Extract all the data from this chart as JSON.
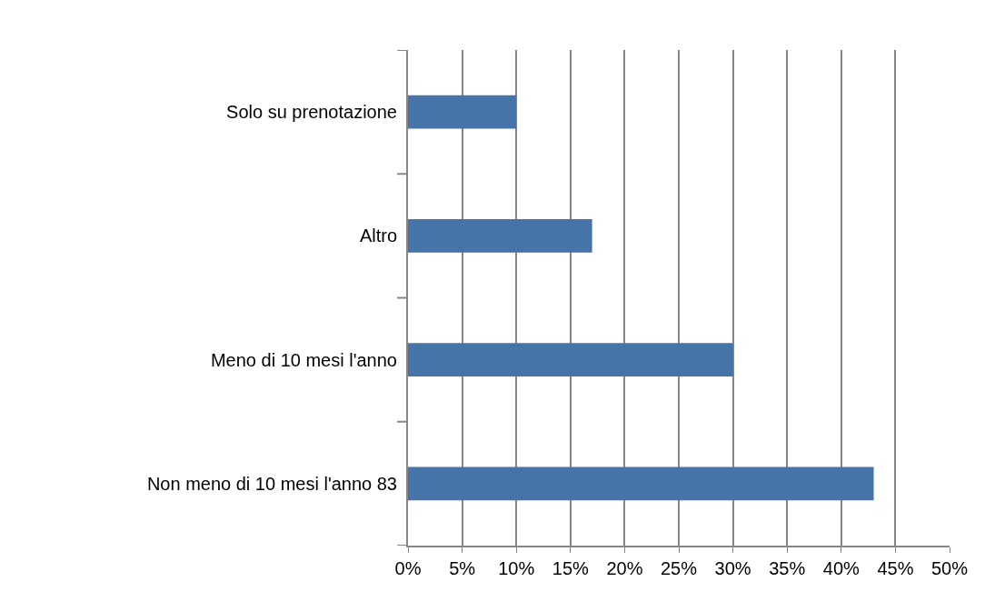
{
  "chart_data": {
    "type": "bar",
    "orientation": "horizontal",
    "categories": [
      "Solo su prenotazione",
      "Altro",
      "Meno di 10 mesi l'anno",
      "Non meno di 10 mesi l'anno 83"
    ],
    "values": [
      10,
      17,
      30,
      43
    ],
    "color": "#4674a9",
    "xlim": [
      0,
      50
    ],
    "xticks": [
      {
        "value": 0,
        "label": "0%"
      },
      {
        "value": 5,
        "label": "5%"
      },
      {
        "value": 10,
        "label": "10%"
      },
      {
        "value": 15,
        "label": "15%"
      },
      {
        "value": 20,
        "label": "20%"
      },
      {
        "value": 25,
        "label": "25%"
      },
      {
        "value": 30,
        "label": "30%"
      },
      {
        "value": 35,
        "label": "35%"
      },
      {
        "value": 40,
        "label": "40%"
      },
      {
        "value": 45,
        "label": "45%"
      },
      {
        "value": 50,
        "label": "50%"
      }
    ],
    "grid": "x"
  }
}
